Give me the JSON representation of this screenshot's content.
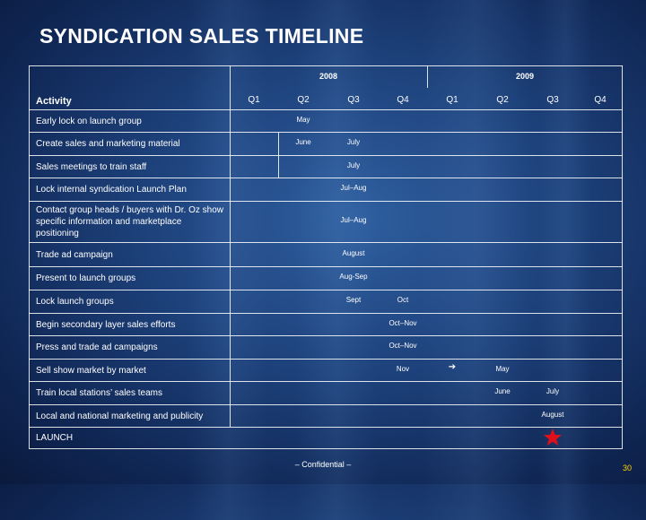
{
  "title": "SYNDICATION SALES TIMELINE",
  "years": [
    "2008",
    "2009"
  ],
  "quarters": [
    "Q1",
    "Q2",
    "Q3",
    "Q4",
    "Q1",
    "Q2",
    "Q3",
    "Q4"
  ],
  "activity_header": "Activity",
  "rows": [
    {
      "label": "Early lock on launch group",
      "cells": [
        {
          "q": 2,
          "text": "May"
        }
      ]
    },
    {
      "label": "Create sales and marketing material",
      "cells": [
        {
          "q": 2,
          "text": "June"
        },
        {
          "q": 3,
          "text": "July"
        }
      ]
    },
    {
      "label": "Sales meetings to train staff",
      "cells": [
        {
          "q": 3,
          "text": "July"
        }
      ]
    },
    {
      "label": "Lock internal syndication Launch Plan",
      "cells": [
        {
          "q": 3,
          "text": "Jul–Aug"
        }
      ]
    },
    {
      "label": "Contact group heads / buyers with Dr. Oz show specific information and marketplace positioning",
      "cells": [
        {
          "q": 3,
          "text": "Jul–Aug"
        }
      ]
    },
    {
      "label": "Trade  ad campaign",
      "cells": [
        {
          "q": 3,
          "text": "August"
        }
      ]
    },
    {
      "label": "Present to launch groups",
      "cells": [
        {
          "q": 3,
          "text": "Aug-Sep"
        }
      ]
    },
    {
      "label": "Lock launch groups",
      "cells": [
        {
          "q": 3,
          "text": "Sept"
        },
        {
          "q": 4,
          "text": "Oct"
        }
      ]
    },
    {
      "label": "Begin secondary layer sales efforts",
      "cells": [
        {
          "q": 4,
          "text": "Oct–Nov"
        }
      ]
    },
    {
      "label": "Press and trade ad campaigns",
      "cells": [
        {
          "q": 4,
          "text": "Oct–Nov"
        }
      ]
    },
    {
      "label": "Sell show market by market",
      "cells": [
        {
          "q": 4,
          "text": "Nov"
        },
        {
          "q": 5,
          "icon": "right-arrow-icon"
        },
        {
          "q": 6,
          "text": "May"
        }
      ]
    },
    {
      "label": "Train local stations’ sales teams",
      "cells": [
        {
          "q": 6,
          "text": "June"
        },
        {
          "q": 7,
          "text": "July"
        }
      ]
    },
    {
      "label": "Local and national marketing and publicity",
      "cells": [
        {
          "q": 7,
          "text": "August"
        }
      ]
    },
    {
      "label": "LAUNCH",
      "cells": [
        {
          "q": 7,
          "icon": "red-star-icon"
        }
      ]
    }
  ],
  "footer": "– Confidential –",
  "page_number": "30",
  "colors": {
    "background": "#1c3f78",
    "grid": "#ffffff",
    "star": "#e0101a",
    "page_number": "#ffd400"
  }
}
